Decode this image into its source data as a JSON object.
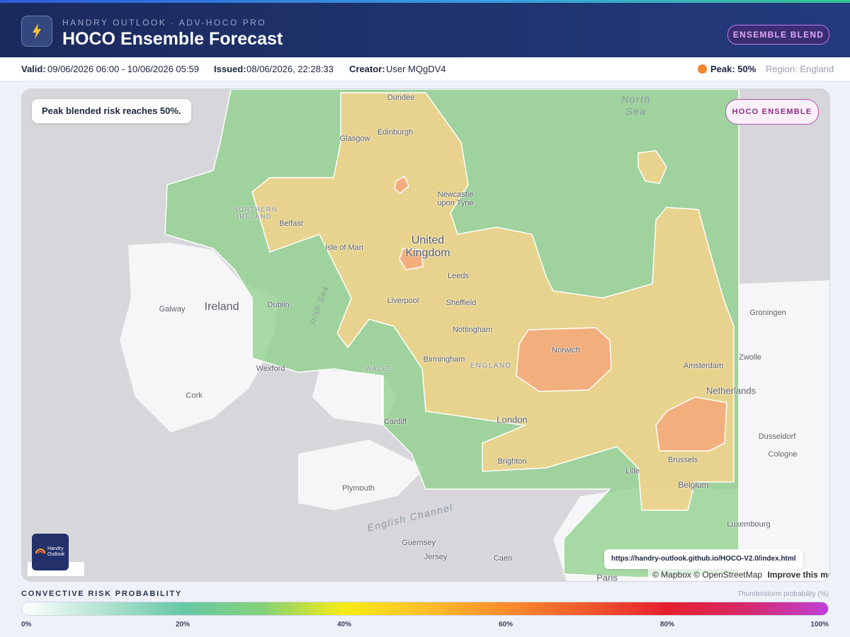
{
  "header": {
    "kicker": "HANDRY OUTLOOK · ADV-HOCO PRO",
    "title": "HOCO Ensemble Forecast",
    "badge": "ENSEMBLE BLEND"
  },
  "info": {
    "valid_label": "Valid:",
    "valid": "09/06/2026 06:00 - 10/06/2026 05:59",
    "issued_label": "Issued:",
    "issued": "08/06/2026, 22:28:33",
    "creator_label": "Creator:",
    "creator": "User MQgDV4",
    "peak": "Peak: 50%",
    "region": "Region: England"
  },
  "map": {
    "note": "Peak blended risk reaches 50%.",
    "layer_badge": "HOCO ENSEMBLE",
    "logo": "Handry Outlook",
    "url": "https://handry-outlook.github.io/HOCO-V2.0/index.html",
    "attribution": "© Mapbox © OpenStreetMap",
    "improve": "Improve this map",
    "places": [
      "Dundee",
      "Edinburgh",
      "Glasgow",
      "Newcastle upon Tyne",
      "NORTHERN IRELAND",
      "Belfast",
      "Isle of Man",
      "United Kingdom",
      "Leeds",
      "Liverpool",
      "Sheffield",
      "Irish Sea",
      "Ireland",
      "Dublin",
      "Galway",
      "Nottingham",
      "Norwich",
      "Wexford",
      "Cork",
      "Birmingham",
      "WALES",
      "ENGLAND",
      "Cardiff",
      "London",
      "Brighton",
      "Plymouth",
      "English Channel",
      "Guernsey",
      "Jersey",
      "Caen",
      "Paris",
      "Lille",
      "Brussels",
      "Belgium",
      "Amsterdam",
      "Netherlands",
      "Zwolle",
      "Groningen",
      "Dusseldorf",
      "Cologne",
      "Luxembourg",
      "North Sea"
    ]
  },
  "legend": {
    "title": "CONVECTIVE RISK PROBABILITY",
    "unit": "Thunderstorm probability (%)",
    "ticks": [
      {
        "value": 0,
        "label": "0%"
      },
      {
        "value": 20,
        "label": "20%"
      },
      {
        "value": 40,
        "label": "40%"
      },
      {
        "value": 60,
        "label": "60%"
      },
      {
        "value": 80,
        "label": "80%"
      },
      {
        "value": 100,
        "label": "100%"
      }
    ]
  }
}
